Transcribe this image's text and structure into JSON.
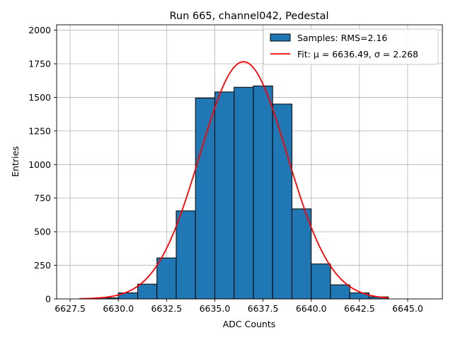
{
  "chart_data": {
    "type": "bar",
    "title": "Run 665, channel042, Pedestal",
    "xlabel": "ADC Counts",
    "ylabel": "Entries",
    "xlim": [
      6626.8,
      6646.8
    ],
    "ylim": [
      0,
      2040
    ],
    "x_ticks": [
      6627.5,
      6630.0,
      6632.5,
      6635.0,
      6637.5,
      6640.0,
      6642.5,
      6645.0
    ],
    "x_tick_labels": [
      "6627.5",
      "6630.0",
      "6632.5",
      "6635.0",
      "6637.5",
      "6640.0",
      "6642.5",
      "6645.0"
    ],
    "y_ticks": [
      0,
      250,
      500,
      750,
      1000,
      1250,
      1500,
      1750,
      2000
    ],
    "y_tick_labels": [
      "0",
      "250",
      "500",
      "750",
      "1000",
      "1250",
      "1500",
      "1750",
      "2000"
    ],
    "grid": true,
    "legend_position": "top-right",
    "series": [
      {
        "name": "Samples: RMS=2.16",
        "kind": "histogram",
        "color": "#1f77b4",
        "edge_color": "#000000",
        "bin_edges": [
          6628,
          6629,
          6630,
          6631,
          6632,
          6633,
          6634,
          6635,
          6636,
          6637,
          6638,
          6639,
          6640,
          6641,
          6642,
          6643,
          6644
        ],
        "values": [
          2,
          8,
          45,
          110,
          305,
          655,
          1495,
          1540,
          1575,
          1585,
          1450,
          670,
          260,
          105,
          45,
          15
        ]
      },
      {
        "name": "Fit: μ = 6636.49, σ = 2.268",
        "kind": "gaussian_fit",
        "color": "#ff0000",
        "mu": 6636.49,
        "sigma": 2.268,
        "amplitude": 1765,
        "x_range": [
          6628,
          6644
        ]
      }
    ]
  }
}
